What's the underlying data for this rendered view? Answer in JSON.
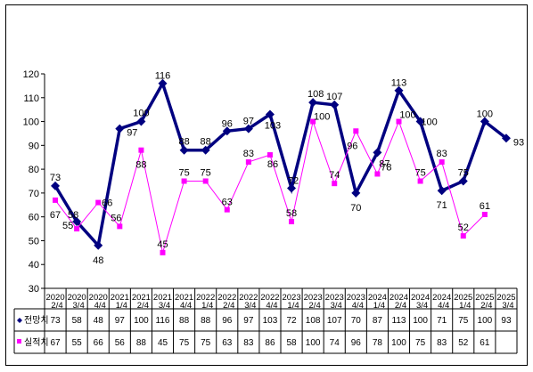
{
  "chart_data": {
    "type": "line",
    "categories": [
      {
        "year": "2020",
        "period": "2/4"
      },
      {
        "year": "2020",
        "period": "3/4"
      },
      {
        "year": "2020",
        "period": "4/4"
      },
      {
        "year": "2021",
        "period": "1/4"
      },
      {
        "year": "2021",
        "period": "2/4"
      },
      {
        "year": "2021",
        "period": "3/4"
      },
      {
        "year": "2021",
        "period": "4/4"
      },
      {
        "year": "2022",
        "period": "1/4"
      },
      {
        "year": "2022",
        "period": "2/4"
      },
      {
        "year": "2022",
        "period": "3/4"
      },
      {
        "year": "2022",
        "period": "4/4"
      },
      {
        "year": "2023",
        "period": "1/4"
      },
      {
        "year": "2023",
        "period": "2/4"
      },
      {
        "year": "2023",
        "period": "3/4"
      },
      {
        "year": "2023",
        "period": "4/4"
      },
      {
        "year": "2024",
        "period": "1/4"
      },
      {
        "year": "2024",
        "period": "2/4"
      },
      {
        "year": "2024",
        "period": "3/4"
      },
      {
        "year": "2024",
        "period": "4/4"
      },
      {
        "year": "2025",
        "period": "1/4"
      },
      {
        "year": "2025",
        "period": "2/4"
      },
      {
        "year": "2025",
        "period": "3/4"
      }
    ],
    "series": [
      {
        "name": "전망치",
        "color": "#000080",
        "marker": "diamond",
        "values": [
          73,
          58,
          48,
          97,
          100,
          116,
          88,
          88,
          96,
          97,
          103,
          72,
          108,
          107,
          70,
          87,
          113,
          100,
          71,
          75,
          100,
          93
        ]
      },
      {
        "name": "실적치",
        "color": "#ff00ff",
        "marker": "square",
        "values": [
          67,
          55,
          66,
          56,
          88,
          45,
          75,
          75,
          63,
          83,
          86,
          58,
          100,
          74,
          96,
          78,
          100,
          75,
          83,
          52,
          61,
          null
        ]
      }
    ],
    "ylim": [
      30,
      120
    ],
    "yticks": [
      30,
      40,
      50,
      60,
      70,
      80,
      90,
      100,
      110,
      120
    ],
    "grid": false,
    "legend": "data-table"
  }
}
